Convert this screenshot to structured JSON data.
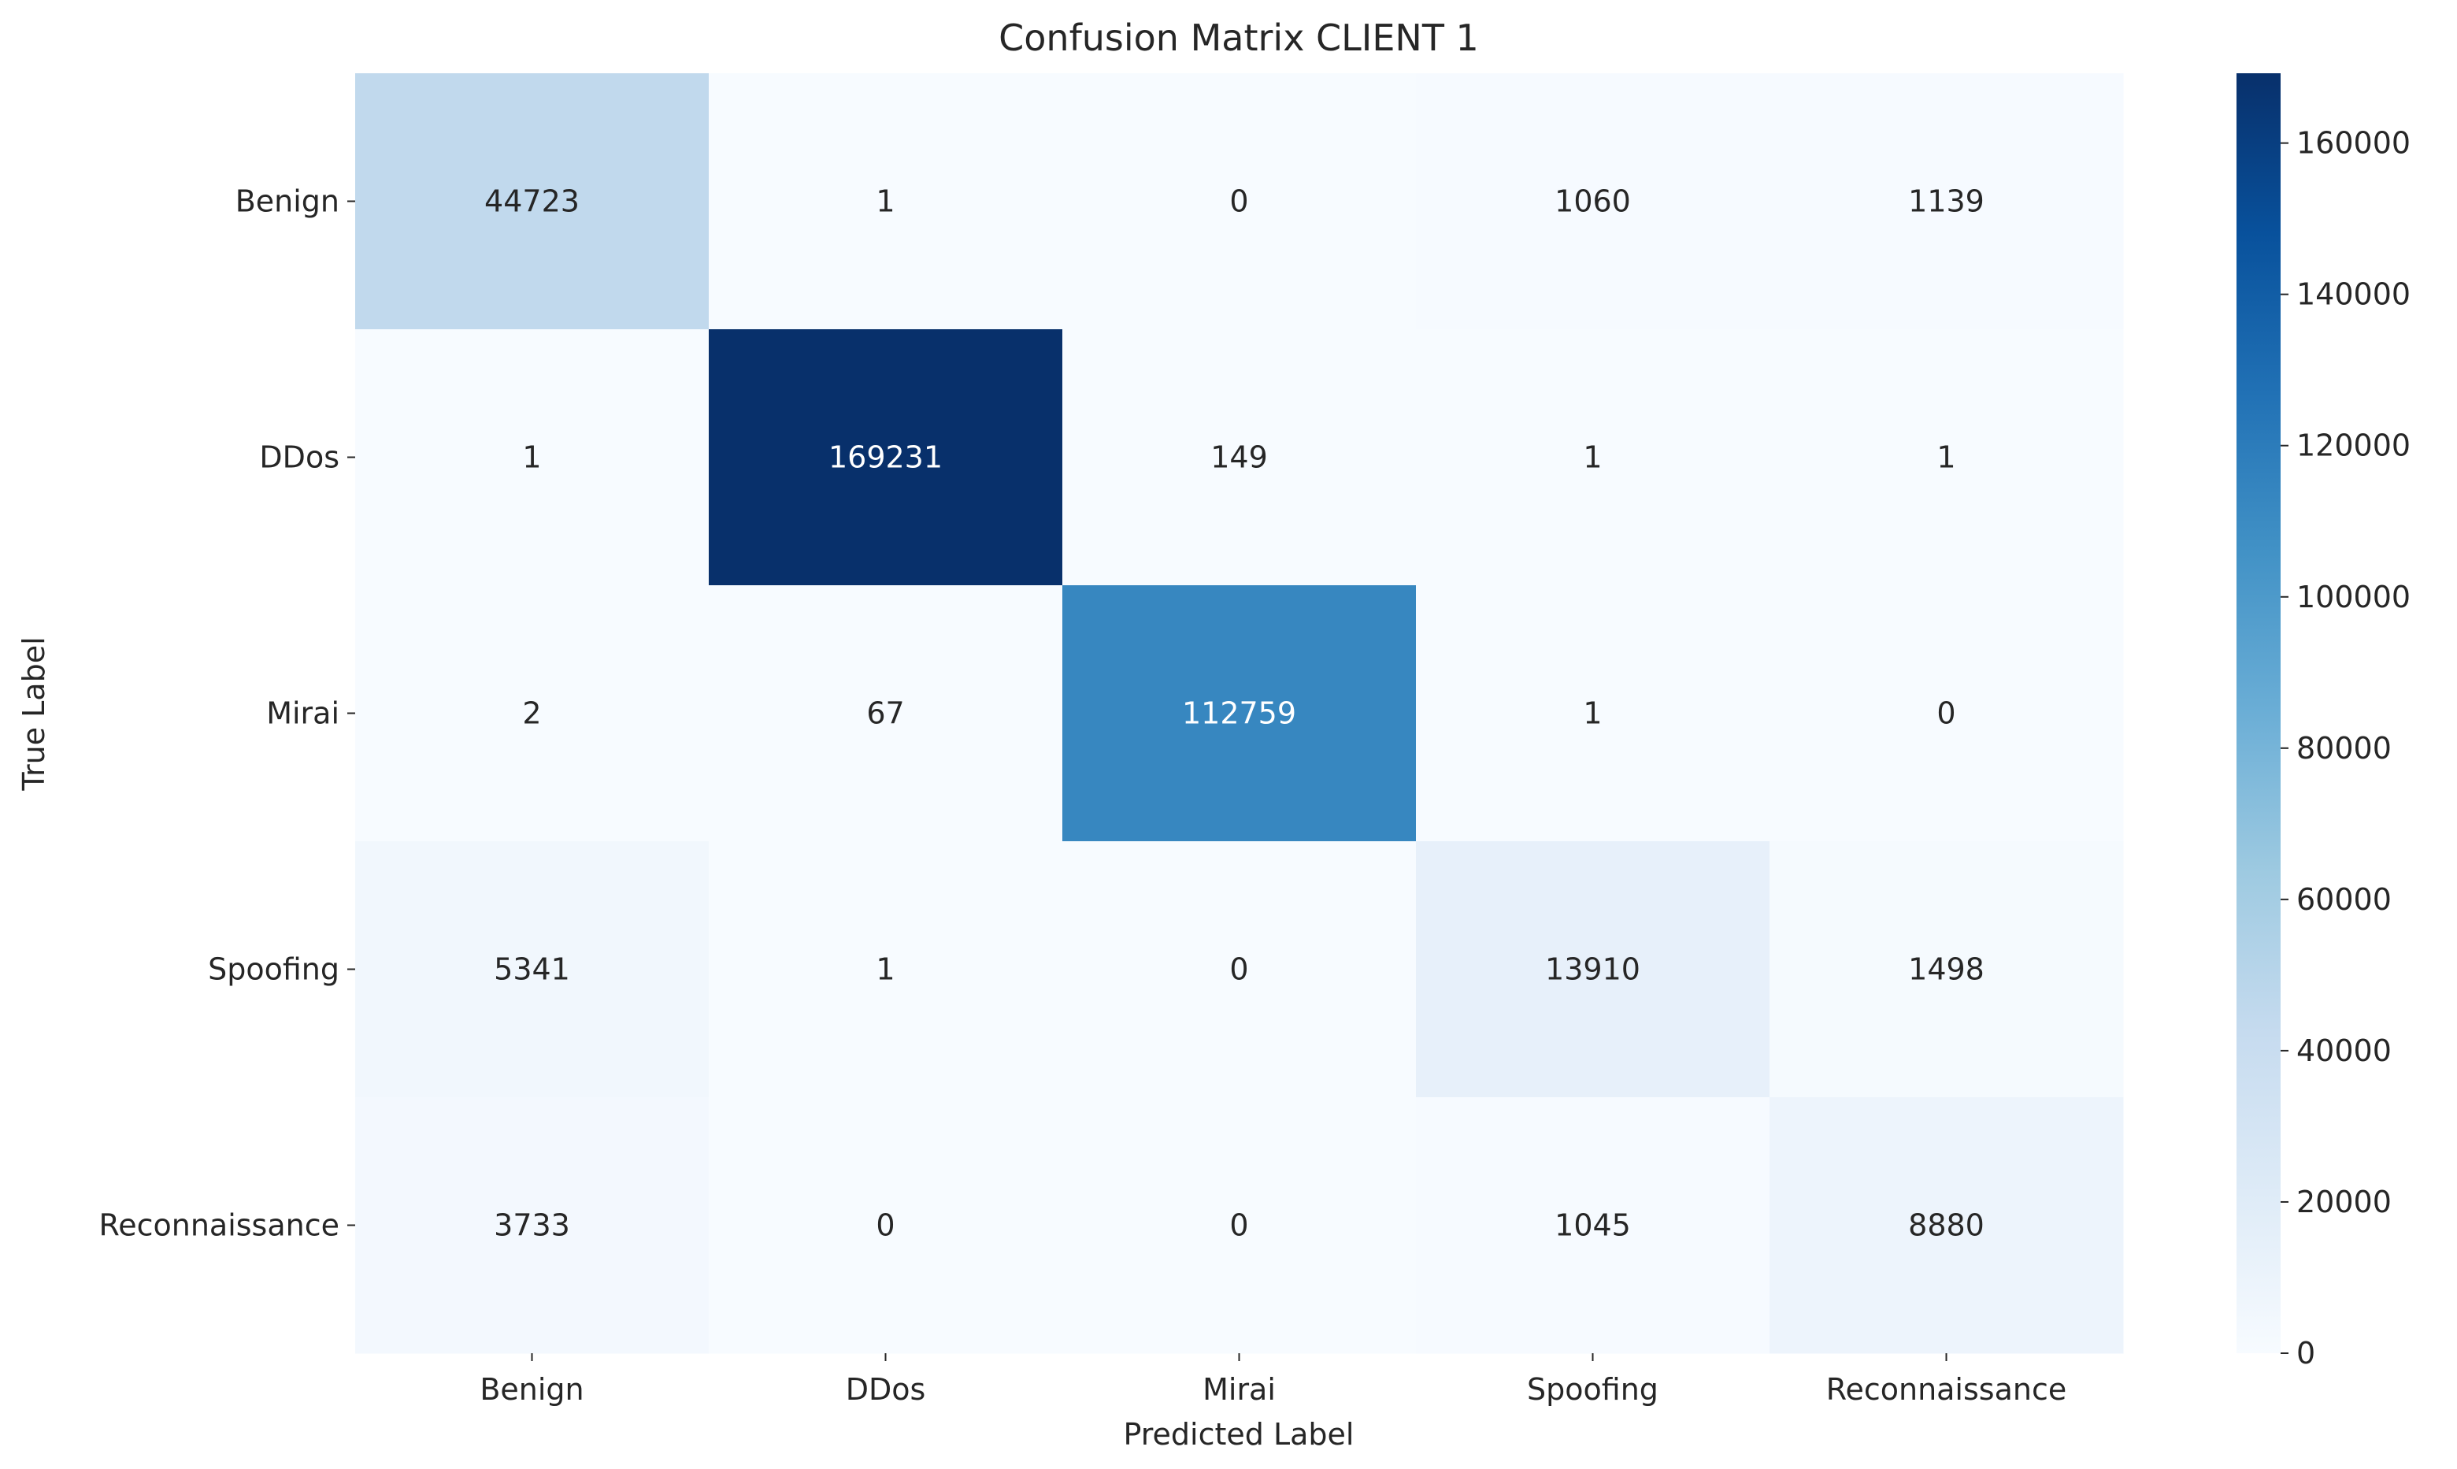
{
  "chart_data": {
    "type": "heatmap",
    "title": "Confusion Matrix CLIENT 1",
    "xlabel": "Predicted Label",
    "ylabel": "True Label",
    "x_categories": [
      "Benign",
      "DDos",
      "Mirai",
      "Spoofing",
      "Reconnaissance"
    ],
    "y_categories": [
      "Benign",
      "DDos",
      "Mirai",
      "Spoofing",
      "Reconnaissance"
    ],
    "matrix": [
      [
        44723,
        1,
        0,
        1060,
        1139
      ],
      [
        1,
        169231,
        149,
        1,
        1
      ],
      [
        2,
        67,
        112759,
        1,
        0
      ],
      [
        5341,
        1,
        0,
        13910,
        1498
      ],
      [
        3733,
        0,
        0,
        1045,
        8880
      ]
    ],
    "colorbar": {
      "colormap": "Blues",
      "range": [
        0,
        169231
      ],
      "ticks": [
        0,
        20000,
        40000,
        60000,
        80000,
        100000,
        120000,
        140000,
        160000
      ]
    }
  }
}
